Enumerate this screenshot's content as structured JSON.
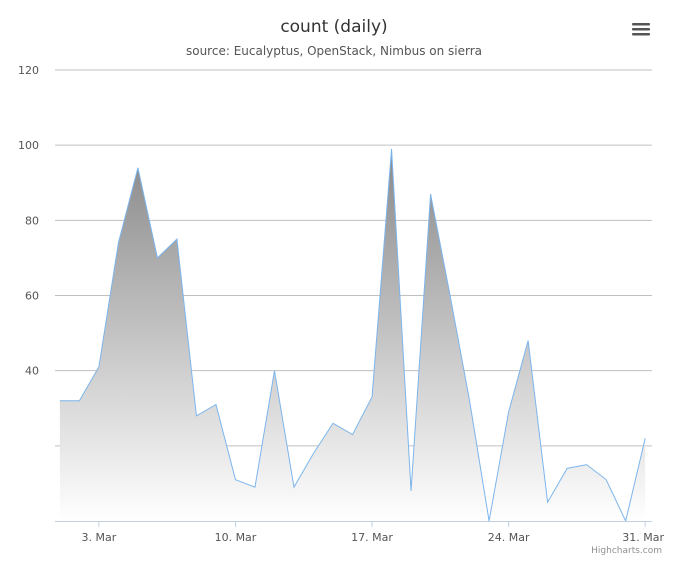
{
  "chart_data": {
    "type": "area",
    "title": "count (daily)",
    "subtitle": "source: Eucalyptus, OpenStack, Nimbus on sierra",
    "xlabel": "",
    "ylabel": "",
    "ylim": [
      0,
      120
    ],
    "xlim": [
      "2014-03-01",
      "2014-03-31"
    ],
    "yticks": [
      20,
      40,
      60,
      80,
      100,
      120
    ],
    "ytick_labels": [
      "40",
      "60",
      "80",
      "100",
      "120"
    ],
    "xtick_labels": [
      "3. Mar",
      "10. Mar",
      "17. Mar",
      "24. Mar",
      "31. Mar"
    ],
    "xtick_dates": [
      "2014-03-03",
      "2014-03-10",
      "2014-03-17",
      "2014-03-24",
      "2014-03-31"
    ],
    "grid": true,
    "legend": "none",
    "x": [
      "2014-03-01",
      "2014-03-02",
      "2014-03-03",
      "2014-03-04",
      "2014-03-05",
      "2014-03-06",
      "2014-03-07",
      "2014-03-08",
      "2014-03-09",
      "2014-03-10",
      "2014-03-11",
      "2014-03-12",
      "2014-03-13",
      "2014-03-14",
      "2014-03-15",
      "2014-03-16",
      "2014-03-17",
      "2014-03-18",
      "2014-03-19",
      "2014-03-20",
      "2014-03-21",
      "2014-03-22",
      "2014-03-23",
      "2014-03-24",
      "2014-03-25",
      "2014-03-26",
      "2014-03-27",
      "2014-03-28",
      "2014-03-29",
      "2014-03-30",
      "2014-03-31"
    ],
    "series": [
      {
        "values": [
          32,
          32,
          41,
          74,
          94,
          70,
          75,
          28,
          31,
          11,
          9,
          40,
          9,
          18,
          26,
          23,
          33,
          99,
          8,
          87,
          60,
          32,
          0,
          29,
          48,
          5,
          14,
          15,
          11,
          0,
          22
        ],
        "line_color": "#7cb5ec",
        "fill_top_color": "#888888",
        "fill_bottom_color": "#ffffff"
      }
    ]
  },
  "ui": {
    "menu_icon": "hamburger-menu-icon",
    "credits": "Highcharts.com"
  }
}
